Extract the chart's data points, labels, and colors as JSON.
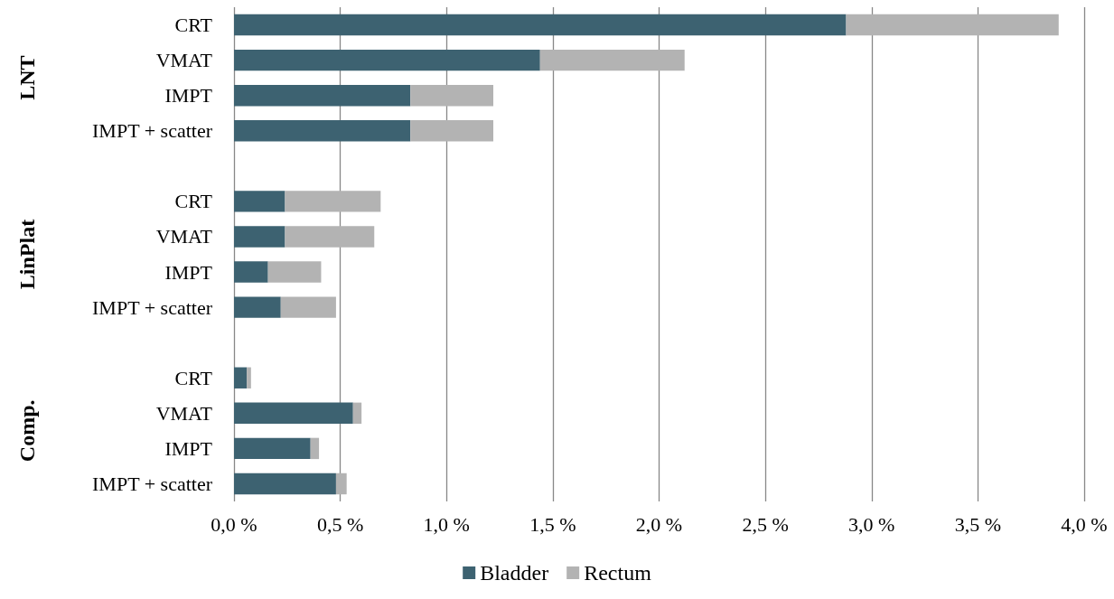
{
  "chart_data": {
    "type": "bar",
    "orientation": "horizontal",
    "stacked": true,
    "categories": [
      "CRT",
      "VMAT",
      "IMPT",
      "IMPT + scatter",
      null,
      "CRT",
      "VMAT",
      "IMPT",
      "IMPT + scatter",
      null,
      "CRT",
      "VMAT",
      "IMPT",
      "IMPT + scatter"
    ],
    "series": [
      {
        "name": "Bladder",
        "color": "#3d6271",
        "values": [
          2.88,
          1.44,
          0.83,
          0.83,
          null,
          0.24,
          0.24,
          0.16,
          0.22,
          null,
          0.06,
          0.56,
          0.36,
          0.48
        ]
      },
      {
        "name": "Rectum",
        "color": "#b3b3b3",
        "values": [
          1.0,
          0.68,
          0.39,
          0.39,
          null,
          0.45,
          0.42,
          0.25,
          0.26,
          null,
          0.02,
          0.04,
          0.04,
          0.05
        ]
      }
    ],
    "xlim": [
      0,
      4
    ],
    "xticks": [
      {
        "value": 0,
        "label": "0,0 %"
      },
      {
        "value": 0.5,
        "label": "0,5 %"
      },
      {
        "value": 1,
        "label": "1,0 %"
      },
      {
        "value": 1.5,
        "label": "1,5 %"
      },
      {
        "value": 2,
        "label": "2,0 %"
      },
      {
        "value": 2.5,
        "label": "2,5 %"
      },
      {
        "value": 3,
        "label": "3,0 %"
      },
      {
        "value": 3.5,
        "label": "3,5 %"
      },
      {
        "value": 4,
        "label": "4,0 %"
      }
    ],
    "annotations": [
      "LNT",
      "LinPlat",
      "Comp."
    ],
    "grid": "x",
    "legend": "bottom"
  }
}
